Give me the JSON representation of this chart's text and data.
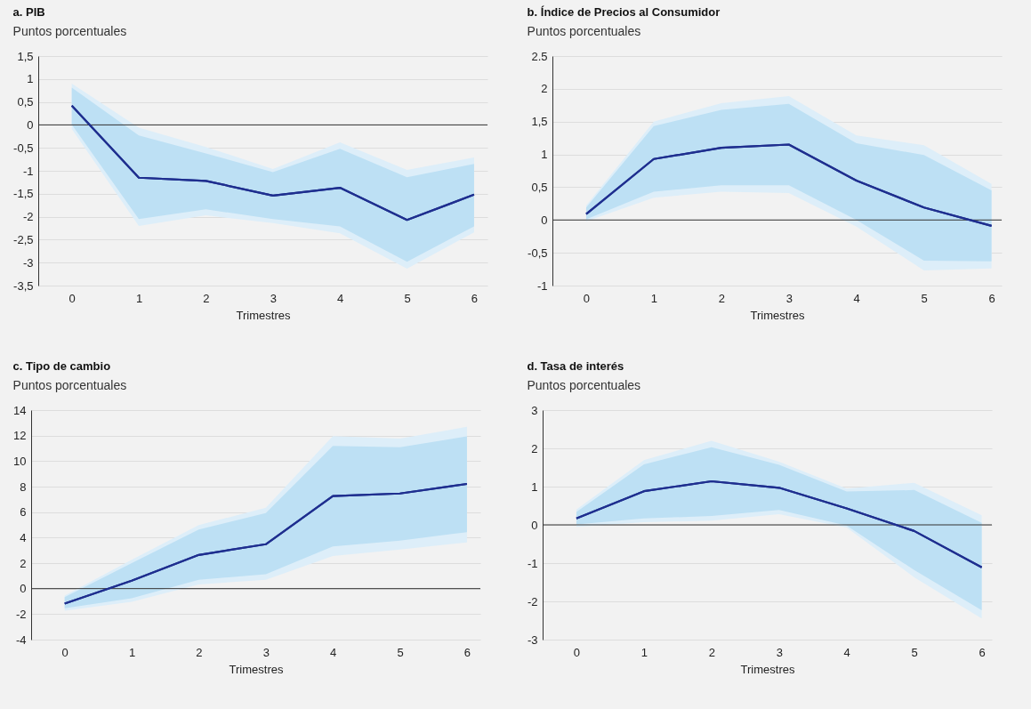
{
  "chart_data": [
    {
      "type": "line",
      "title": "a. PIB",
      "ylabel": "Puntos porcentuales",
      "xlabel": "Trimestres",
      "x": [
        0,
        1,
        2,
        3,
        4,
        5,
        6
      ],
      "xlim": [
        -0.5,
        6.2
      ],
      "xticks": [
        0,
        1,
        2,
        3,
        4,
        5,
        6
      ],
      "ylim": [
        -3.5,
        1.5
      ],
      "yticks": [
        {
          "value": 1.5,
          "label": "1,5"
        },
        1,
        {
          "value": 0.5,
          "label": "0,5"
        },
        0,
        {
          "value": -0.5,
          "label": "-0,5"
        },
        -1,
        {
          "value": -1.5,
          "label": "-1,5"
        },
        -2,
        {
          "value": -2.5,
          "label": "-2,5"
        },
        -3,
        {
          "value": -3.5,
          "label": "-3,5"
        }
      ],
      "grid": "y",
      "ref_lines": [
        {
          "axis": "y",
          "value": 0,
          "color": "#333333"
        }
      ],
      "series": [
        {
          "color": "#1f2f8f",
          "values": [
            0.42,
            -1.15,
            -1.22,
            -1.54,
            -1.37,
            -2.07,
            -1.52
          ],
          "lower": [
            -0.09,
            -2.2,
            -1.97,
            -2.14,
            -2.36,
            -3.13,
            -2.34
          ],
          "upper": [
            0.9,
            -0.06,
            -0.48,
            -0.96,
            -0.38,
            -0.98,
            -0.71
          ]
        },
        {
          "color": "#1f2f8f",
          "values": [
            0.42,
            -1.15,
            -1.22,
            -1.54,
            -1.37,
            -2.07,
            -1.52
          ],
          "lower": [
            0.01,
            -2.05,
            -1.84,
            -2.05,
            -2.21,
            -2.98,
            -2.21
          ],
          "upper": [
            0.81,
            -0.23,
            -0.62,
            -1.03,
            -0.52,
            -1.14,
            -0.85
          ]
        }
      ]
    },
    {
      "type": "line",
      "title": "b. Índice de Precios al Consumidor",
      "ylabel": "Puntos porcentuales",
      "xlabel": "Trimestres",
      "x": [
        0,
        1,
        2,
        3,
        4,
        5,
        6
      ],
      "xlim": [
        -0.5,
        6.15
      ],
      "xticks": [
        0,
        1,
        2,
        3,
        4,
        5,
        6
      ],
      "ylim": [
        -1,
        2.5
      ],
      "yticks": [
        2.5,
        2,
        {
          "value": 1.5,
          "label": "1,5"
        },
        1,
        {
          "value": 0.5,
          "label": "0,5"
        },
        0,
        {
          "value": -0.5,
          "label": "-0,5"
        },
        -1
      ],
      "grid": "y",
      "ref_lines": [
        {
          "axis": "y",
          "value": 0,
          "color": "#333333"
        }
      ],
      "series": [
        {
          "color": "#1f2f8f",
          "values": [
            0.09,
            0.93,
            1.1,
            1.15,
            0.6,
            0.19,
            -0.09
          ],
          "lower": [
            -0.02,
            0.34,
            0.43,
            0.41,
            -0.1,
            -0.77,
            -0.74
          ],
          "upper": [
            0.22,
            1.5,
            1.78,
            1.89,
            1.29,
            1.14,
            0.55
          ]
        },
        {
          "color": "#1f2f8f",
          "values": [
            0.09,
            0.93,
            1.1,
            1.15,
            0.6,
            0.19,
            -0.09
          ],
          "lower": [
            0.01,
            0.43,
            0.53,
            0.53,
            0.0,
            -0.62,
            -0.63
          ],
          "upper": [
            0.19,
            1.43,
            1.68,
            1.77,
            1.17,
            0.99,
            0.45
          ]
        }
      ]
    },
    {
      "type": "line",
      "title": "c. Tipo de cambio",
      "ylabel": "Puntos porcentuales",
      "xlabel": "Trimestres",
      "x": [
        0,
        1,
        2,
        3,
        4,
        5,
        6
      ],
      "xlim": [
        -0.5,
        6.2
      ],
      "xticks": [
        0,
        1,
        2,
        3,
        4,
        5,
        6
      ],
      "ylim": [
        -4,
        14
      ],
      "yticks": [
        14,
        12,
        10,
        8,
        6,
        4,
        2,
        0,
        -2,
        -4
      ],
      "grid": "y",
      "ref_lines": [
        {
          "axis": "y",
          "value": 0,
          "color": "#333333"
        }
      ],
      "series": [
        {
          "color": "#1f2f8f",
          "values": [
            -1.17,
            0.62,
            2.64,
            3.48,
            7.26,
            7.46,
            8.21
          ],
          "lower": [
            -1.74,
            -1.04,
            0.32,
            0.7,
            2.56,
            3.06,
            3.63
          ],
          "upper": [
            -0.55,
            2.26,
            4.98,
            6.34,
            11.96,
            11.77,
            12.69
          ]
        },
        {
          "color": "#1f2f8f",
          "values": [
            -1.17,
            0.62,
            2.64,
            3.48,
            7.26,
            7.46,
            8.21
          ],
          "lower": [
            -1.54,
            -0.75,
            0.7,
            1.12,
            3.31,
            3.76,
            4.43
          ],
          "upper": [
            -0.67,
            2.0,
            4.63,
            5.92,
            11.19,
            11.09,
            11.94
          ]
        }
      ]
    },
    {
      "type": "line",
      "title": "d. Tasa de interés",
      "ylabel": "Puntos porcentuales",
      "xlabel": "Trimestres",
      "x": [
        0,
        1,
        2,
        3,
        4,
        5,
        6
      ],
      "xlim": [
        -0.5,
        6.15
      ],
      "xticks": [
        0,
        1,
        2,
        3,
        4,
        5,
        6
      ],
      "ylim": [
        -3,
        3
      ],
      "yticks": [
        3,
        2,
        1,
        0,
        -1,
        -2,
        -3
      ],
      "grid": "y",
      "ref_lines": [
        {
          "axis": "y",
          "value": 0,
          "color": "#333333"
        }
      ],
      "series": [
        {
          "color": "#1f2f8f",
          "values": [
            0.17,
            0.88,
            1.14,
            0.97,
            0.43,
            -0.16,
            -1.11
          ],
          "lower": [
            -0.05,
            0.07,
            0.11,
            0.28,
            -0.07,
            -1.37,
            -2.45
          ],
          "upper": [
            0.4,
            1.69,
            2.2,
            1.65,
            0.95,
            1.1,
            0.25
          ]
        },
        {
          "color": "#1f2f8f",
          "values": [
            0.17,
            0.88,
            1.14,
            0.97,
            0.43,
            -0.16,
            -1.11
          ],
          "lower": [
            0.01,
            0.17,
            0.23,
            0.39,
            -0.02,
            -1.18,
            -2.23
          ],
          "upper": [
            0.34,
            1.58,
            2.03,
            1.57,
            0.87,
            0.91,
            0.05
          ]
        }
      ]
    }
  ]
}
